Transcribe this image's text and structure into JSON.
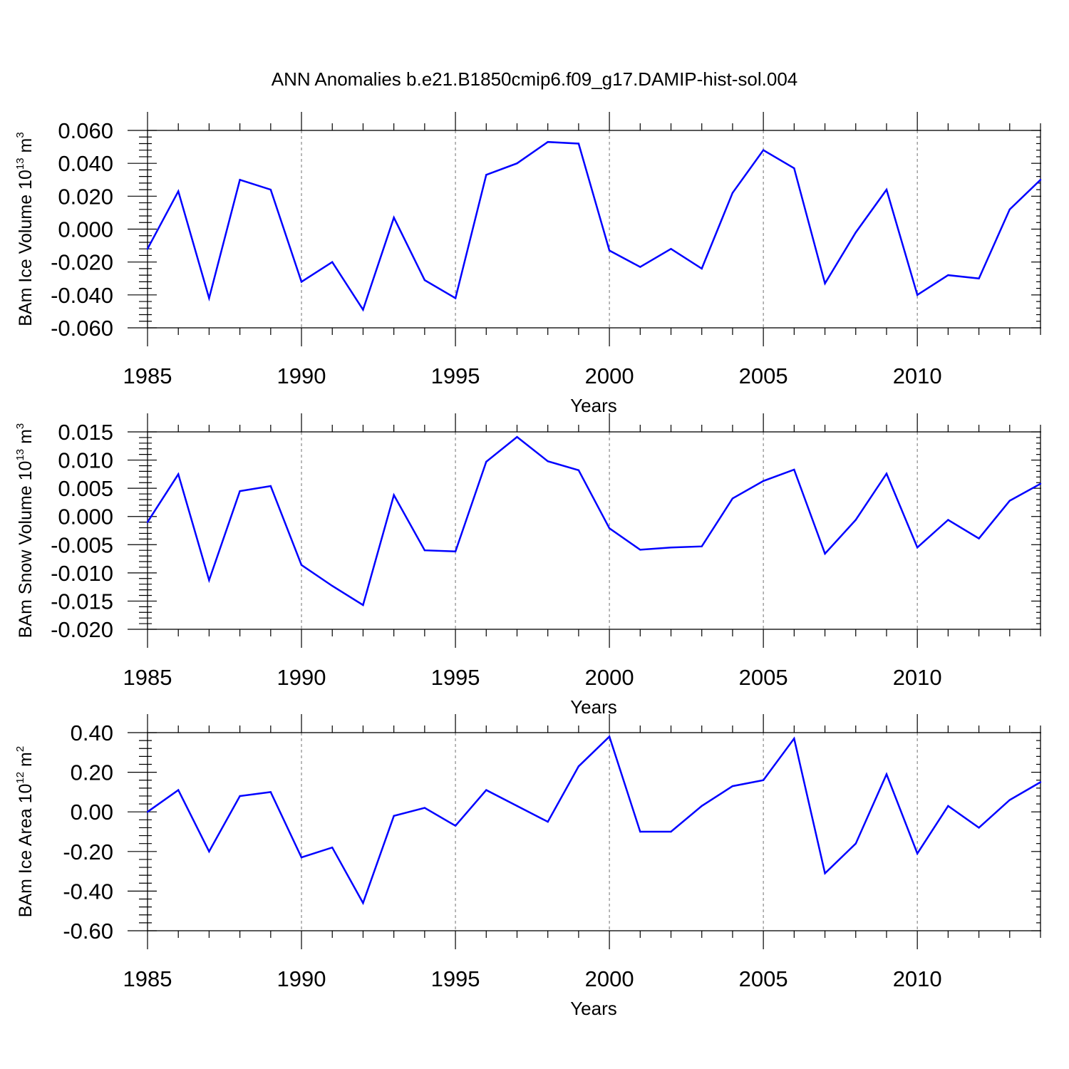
{
  "title": "ANN Anomalies b.e21.B1850cmip6.f09_g17.DAMIP-hist-sol.004",
  "colors": {
    "line": "#0000ff",
    "grid": "#888888"
  },
  "chart_data": [
    {
      "type": "line",
      "ylabel": {
        "prefix": "BAm Ice Volume 10",
        "exp": "13",
        "unit": " m",
        "unit_exp": "3"
      },
      "xlabel": "Years",
      "xlim": [
        1985,
        2014
      ],
      "ylim": [
        -0.06,
        0.06
      ],
      "xticks": [
        1985,
        1990,
        1995,
        2000,
        2005,
        2010
      ],
      "xtick_labels": [
        "1985",
        "1990",
        "1995",
        "2000",
        "2005",
        "2010"
      ],
      "yticks": [
        -0.06,
        -0.04,
        -0.02,
        0.0,
        0.02,
        0.04,
        0.06
      ],
      "ytick_labels": [
        "-0.060",
        "-0.040",
        "-0.020",
        "0.000",
        "0.020",
        "0.040",
        "0.060"
      ],
      "grid": "x-dashed",
      "x": [
        1985,
        1986,
        1987,
        1988,
        1989,
        1990,
        1991,
        1992,
        1993,
        1994,
        1995,
        1996,
        1997,
        1998,
        1999,
        2000,
        2001,
        2002,
        2003,
        2004,
        2005,
        2006,
        2007,
        2008,
        2009,
        2010,
        2011,
        2012,
        2013,
        2014
      ],
      "y": [
        -0.012,
        0.023,
        -0.042,
        0.03,
        0.024,
        -0.032,
        -0.02,
        -0.049,
        0.007,
        -0.031,
        -0.042,
        0.033,
        0.04,
        0.053,
        0.052,
        -0.013,
        -0.023,
        -0.012,
        -0.024,
        0.022,
        0.048,
        0.037,
        -0.033,
        -0.002,
        0.024,
        -0.04,
        -0.028,
        -0.03,
        0.012,
        0.03
      ]
    },
    {
      "type": "line",
      "ylabel": {
        "prefix": "BAm Snow Volume 10",
        "exp": "13",
        "unit": " m",
        "unit_exp": "3"
      },
      "xlabel": "Years",
      "xlim": [
        1985,
        2014
      ],
      "ylim": [
        -0.02,
        0.015
      ],
      "xticks": [
        1985,
        1990,
        1995,
        2000,
        2005,
        2010
      ],
      "xtick_labels": [
        "1985",
        "1990",
        "1995",
        "2000",
        "2005",
        "2010"
      ],
      "yticks": [
        -0.02,
        -0.015,
        -0.01,
        -0.005,
        0.0,
        0.005,
        0.01,
        0.015
      ],
      "ytick_labels": [
        "-0.020",
        "-0.015",
        "-0.010",
        "-0.005",
        "0.000",
        "0.005",
        "0.010",
        "0.015"
      ],
      "grid": "x-dashed",
      "x": [
        1985,
        1986,
        1987,
        1988,
        1989,
        1990,
        1991,
        1992,
        1993,
        1994,
        1995,
        1996,
        1997,
        1998,
        1999,
        2000,
        2001,
        2002,
        2003,
        2004,
        2005,
        2006,
        2007,
        2008,
        2009,
        2010,
        2011,
        2012,
        2013,
        2014
      ],
      "y": [
        -0.001,
        0.0075,
        -0.0113,
        0.0045,
        0.0054,
        -0.0086,
        -0.0123,
        -0.0157,
        0.0038,
        -0.006,
        -0.0062,
        0.0097,
        0.0141,
        0.0098,
        0.0082,
        -0.0021,
        -0.0059,
        -0.0055,
        -0.0053,
        0.0032,
        0.0063,
        0.0083,
        -0.0066,
        -0.0006,
        0.0076,
        -0.0055,
        -0.0006,
        -0.0039,
        0.0028,
        0.0058
      ]
    },
    {
      "type": "line",
      "ylabel": {
        "prefix": "BAm Ice Area 10",
        "exp": "12",
        "unit": " m",
        "unit_exp": "2"
      },
      "xlabel": "Years",
      "xlim": [
        1985,
        2014
      ],
      "ylim": [
        -0.6,
        0.4
      ],
      "xticks": [
        1985,
        1990,
        1995,
        2000,
        2005,
        2010
      ],
      "xtick_labels": [
        "1985",
        "1990",
        "1995",
        "2000",
        "2005",
        "2010"
      ],
      "yticks": [
        -0.6,
        -0.4,
        -0.2,
        0.0,
        0.2,
        0.4
      ],
      "ytick_labels": [
        "-0.60",
        "-0.40",
        "-0.20",
        "0.00",
        "0.20",
        "0.40"
      ],
      "grid": "x-dashed",
      "x": [
        1985,
        1986,
        1987,
        1988,
        1989,
        1990,
        1991,
        1992,
        1993,
        1994,
        1995,
        1996,
        1997,
        1998,
        1999,
        2000,
        2001,
        2002,
        2003,
        2004,
        2005,
        2006,
        2007,
        2008,
        2009,
        2010,
        2011,
        2012,
        2013,
        2014
      ],
      "y": [
        0.0,
        0.11,
        -0.2,
        0.08,
        0.1,
        -0.23,
        -0.18,
        -0.46,
        -0.02,
        0.02,
        -0.07,
        0.11,
        0.03,
        -0.05,
        0.23,
        0.38,
        -0.1,
        -0.1,
        0.03,
        0.13,
        0.16,
        0.37,
        -0.31,
        -0.16,
        0.19,
        -0.21,
        0.03,
        -0.08,
        0.06,
        0.15
      ]
    }
  ]
}
